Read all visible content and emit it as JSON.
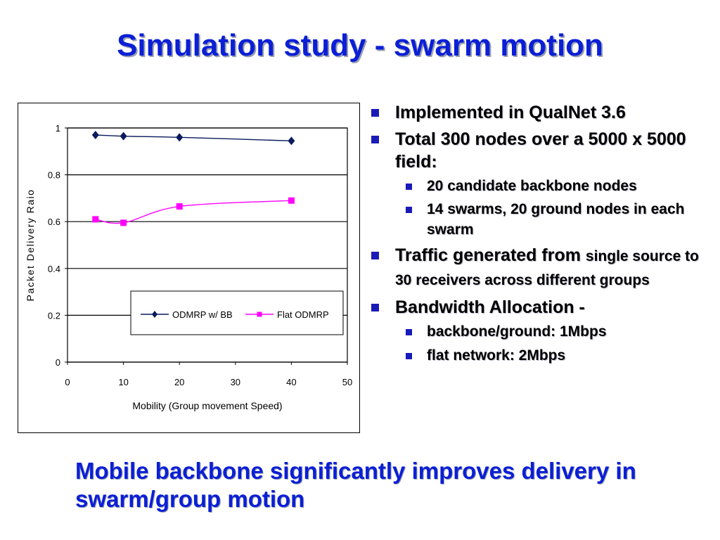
{
  "slide": {
    "title": "Simulation study - swarm motion",
    "conclusion": "Mobile backbone significantly improves delivery in swarm/group motion"
  },
  "bullets": [
    {
      "level": 1,
      "text": "Implemented in QualNet 3.6"
    },
    {
      "level": 1,
      "text": "Total 300 nodes over a 5000 x 5000 field:"
    },
    {
      "level": 2,
      "text": "20 candidate backbone nodes"
    },
    {
      "level": 2,
      "text": "14 swarms, 20 ground nodes in each swarm"
    },
    {
      "level": 1,
      "text_main": "Traffic generated from",
      "text_small": "single source to 30 receivers across different groups"
    },
    {
      "level": 1,
      "text": "Bandwidth Allocation -"
    },
    {
      "level": 2,
      "text": "backbone/ground: 1Mbps"
    },
    {
      "level": 2,
      "text": "flat network: 2Mbps"
    }
  ],
  "colors": {
    "title": "#0b1fd6",
    "bullet_marker": "#1a1ab8",
    "series_odmrp_bb": "#0a1a5c",
    "series_flat_odmrp": "#ff00ff"
  },
  "chart_data": {
    "type": "line",
    "title": "",
    "xlabel": "Mobility (Group movement Speed)",
    "ylabel": "Packet Delivery Raio",
    "xlim": [
      0,
      50
    ],
    "ylim": [
      0,
      1
    ],
    "x_ticks": [
      "0",
      "10",
      "20",
      "30",
      "40",
      "50"
    ],
    "y_ticks": [
      "0",
      "0.2",
      "0.4",
      "0.6",
      "0.8",
      "1"
    ],
    "grid": "horizontal",
    "legend_position": "inside-bottom",
    "series": [
      {
        "name": "ODMRP w/ BB",
        "marker": "diamond",
        "color": "#0a1a5c",
        "x": [
          5,
          10,
          20,
          40
        ],
        "y": [
          0.97,
          0.965,
          0.96,
          0.945
        ]
      },
      {
        "name": "Flat ODMRP",
        "marker": "square",
        "color": "#ff00ff",
        "x": [
          5,
          10,
          20,
          40
        ],
        "y": [
          0.61,
          0.595,
          0.665,
          0.69
        ]
      }
    ]
  }
}
